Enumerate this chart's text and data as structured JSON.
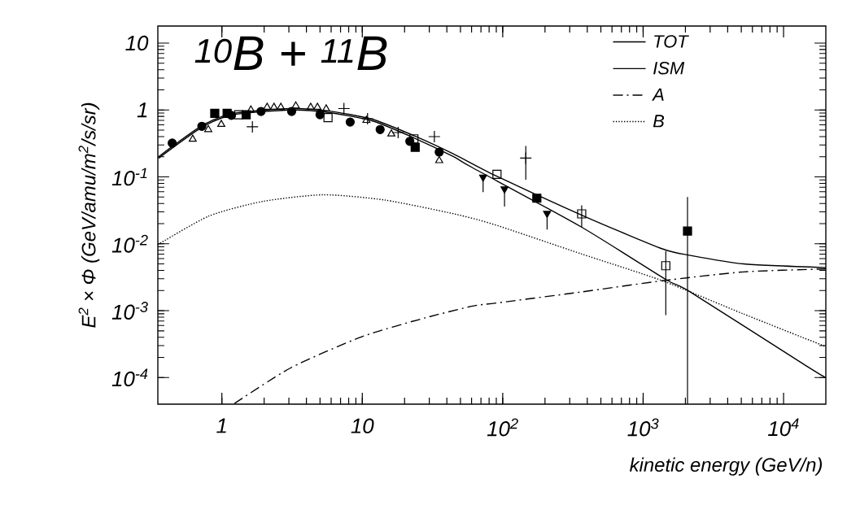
{
  "chart_data": {
    "type": "line",
    "xlabel": "kinetic energy (GeV/n)",
    "ylabel": "E$^{2}$ × Φ (GeV/amu/m$^{2}$/s/sr)",
    "annotations": [
      "$^{10}$B + $^{11}$B"
    ],
    "log": "xy",
    "xlim": [
      0.35,
      20000
    ],
    "ylim": [
      4e-05,
      18
    ],
    "xticks": [
      1,
      10,
      {
        "value": 100,
        "label": "10$^{2}$"
      },
      {
        "value": 1000,
        "label": "10$^{3}$"
      },
      {
        "value": 10000,
        "label": "10$^{4}$"
      }
    ],
    "yticks": [
      {
        "value": 0.0001,
        "label": "10$^{-4}$"
      },
      {
        "value": 0.001,
        "label": "10$^{-3}$"
      },
      {
        "value": 0.01,
        "label": "10$^{-2}$"
      },
      {
        "value": 0.1,
        "label": "10$^{-1}$"
      },
      1,
      10
    ],
    "legend": "top right",
    "series": [
      {
        "name": "TOT",
        "color": "#000000",
        "line_style": "solid",
        "x": [
          0.354,
          0.72,
          1.21,
          3.1,
          5.7,
          11.7,
          22.9,
          44.7,
          90,
          394,
          1370,
          2170,
          5200,
          20000
        ],
        "values": [
          0.2,
          0.58,
          0.89,
          1.05,
          0.97,
          0.73,
          0.42,
          0.22,
          0.103,
          0.025,
          0.0084,
          0.0067,
          0.005,
          0.0044
        ]
      },
      {
        "name": "ISM",
        "color": "#000000",
        "line_style": "solid",
        "x": [
          0.354,
          0.72,
          1.21,
          3.1,
          5.7,
          11.7,
          22.9,
          44.7,
          61,
          360,
          1460,
          2170,
          14500,
          20000
        ],
        "values": [
          0.19,
          0.55,
          0.85,
          1.0,
          0.92,
          0.69,
          0.39,
          0.2,
          0.137,
          0.018,
          0.0029,
          0.0019,
          0.00015,
          0.0001
        ]
      },
      {
        "name": "A",
        "color": "#000000",
        "line_style": "dashdot",
        "x": [
          1.23,
          3.1,
          10,
          28,
          61,
          90,
          360,
          1370,
          5200,
          20000
        ],
        "values": [
          4.1e-05,
          0.00014,
          0.00041,
          0.00078,
          0.00117,
          0.0013,
          0.0019,
          0.0028,
          0.0038,
          0.0042
        ]
      },
      {
        "name": "B",
        "color": "#000000",
        "line_style": "dotted",
        "x": [
          0.35,
          0.81,
          1.96,
          5.3,
          14.5,
          45,
          87,
          360,
          1370,
          5200,
          20000
        ],
        "values": [
          0.0097,
          0.026,
          0.043,
          0.054,
          0.045,
          0.028,
          0.0194,
          0.0071,
          0.0028,
          0.00089,
          0.00029
        ]
      },
      {
        "type": "scatter",
        "marker": "circle",
        "color": "#000000",
        "x": [
          0.443,
          0.72,
          1.17,
          1.9,
          3.14,
          5.0,
          8.2,
          13.4,
          21.8,
          35.3
        ],
        "values": [
          0.32,
          0.57,
          0.83,
          0.95,
          0.95,
          0.85,
          0.66,
          0.51,
          0.34,
          0.235
        ]
      },
      {
        "type": "scatter",
        "marker": "square",
        "color": "#000000",
        "x": [
          0.89,
          1.09,
          1.49,
          23.8,
          175,
          2070
        ],
        "values": [
          0.89,
          0.89,
          0.85,
          0.277,
          0.048,
          0.0155
        ],
        "errors": [
          null,
          null,
          null,
          null,
          null,
          [
            4e-05,
            0.05
          ]
        ]
      },
      {
        "type": "scatter",
        "marker": "square-open",
        "color": "#000000",
        "x": [
          1.32,
          5.7,
          23.3,
          91,
          365,
          1450
        ],
        "values": [
          0.85,
          0.77,
          0.37,
          0.109,
          0.028,
          0.0047
        ],
        "errors": [
          null,
          null,
          null,
          null,
          [
            0.0178,
            0.0375
          ],
          [
            0.00086,
            0.0078
          ]
        ]
      },
      {
        "type": "scatter",
        "marker": "triangle-open",
        "color": "#000000",
        "x": [
          0.62,
          0.8,
          0.99,
          1.61,
          2.1,
          2.35,
          2.63,
          3.36,
          4.29,
          4.79,
          5.53,
          10.7,
          16.1,
          35.3
        ],
        "values": [
          0.366,
          0.51,
          0.61,
          1.0,
          1.1,
          1.1,
          1.1,
          1.15,
          1.1,
          1.1,
          1.04,
          0.7,
          0.44,
          0.175
        ]
      },
      {
        "type": "scatter",
        "marker": "cross",
        "color": "#000000",
        "x": [
          1.65,
          7.4,
          10.9,
          18,
          32.6,
          146
        ],
        "values": [
          0.56,
          1.05,
          0.74,
          0.46,
          0.4,
          0.191
        ],
        "errors": [
          null,
          null,
          null,
          null,
          null,
          [
            0.091,
            0.29
          ]
        ]
      },
      {
        "type": "scatter",
        "marker": "triangle-down",
        "color": "#000000",
        "x": [
          72.5,
          103,
          207
        ],
        "values": [
          0.099,
          0.066,
          0.0284
        ],
        "errors": [
          [
            0.059,
            0.099
          ],
          [
            0.036,
            0.066
          ],
          [
            0.0163,
            0.0284
          ]
        ]
      }
    ]
  }
}
